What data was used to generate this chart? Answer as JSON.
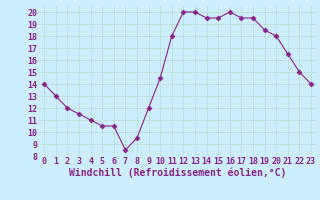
{
  "x": [
    0,
    1,
    2,
    3,
    4,
    5,
    6,
    7,
    8,
    9,
    10,
    11,
    12,
    13,
    14,
    15,
    16,
    17,
    18,
    19,
    20,
    21,
    22,
    23
  ],
  "y": [
    14,
    13,
    12,
    11.5,
    11,
    10.5,
    10.5,
    8.5,
    9.5,
    12,
    14.5,
    18,
    20,
    20,
    19.5,
    19.5,
    20,
    19.5,
    19.5,
    18.5,
    18,
    16.5,
    15,
    14
  ],
  "line_color": "#882288",
  "marker": "D",
  "marker_size": 2.5,
  "bg_color": "#cceeff",
  "grid_color": "#bbddcc",
  "xlabel": "Windchill (Refroidissement éolien,°C)",
  "xlabel_color": "#882288",
  "xlabel_fontsize": 7,
  "tick_fontsize": 6,
  "tick_color": "#882288",
  "xlim": [
    -0.5,
    23.5
  ],
  "ylim": [
    8,
    20.5
  ],
  "yticks": [
    8,
    9,
    10,
    11,
    12,
    13,
    14,
    15,
    16,
    17,
    18,
    19,
    20
  ],
  "xticks": [
    0,
    1,
    2,
    3,
    4,
    5,
    6,
    7,
    8,
    9,
    10,
    11,
    12,
    13,
    14,
    15,
    16,
    17,
    18,
    19,
    20,
    21,
    22,
    23
  ]
}
